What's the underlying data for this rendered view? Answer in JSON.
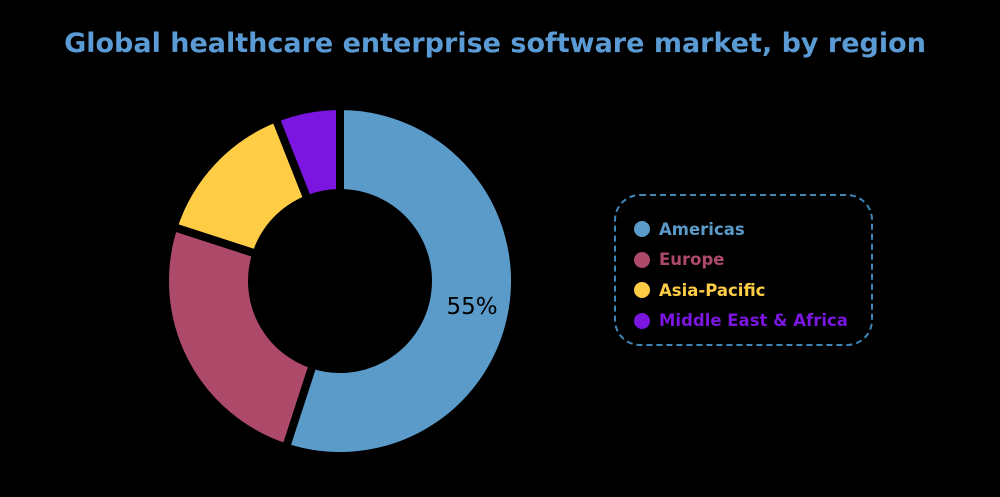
{
  "chart_data": {
    "type": "pie",
    "subtype": "donut",
    "title": "Global healthcare enterprise software market, by region",
    "categories": [
      "Americas",
      "Europe",
      "Asia-Pacific",
      "Middle East & Africa"
    ],
    "values": [
      55,
      25,
      14,
      6
    ],
    "unit": "%",
    "data_labels": [
      {
        "category": "Americas",
        "text": "55%"
      }
    ],
    "colors": [
      "#5b9bc9",
      "#ad4a6a",
      "#ffcd45",
      "#7a16e0"
    ],
    "legend_placement": "right",
    "start_angle": "top, clockwise"
  }
}
